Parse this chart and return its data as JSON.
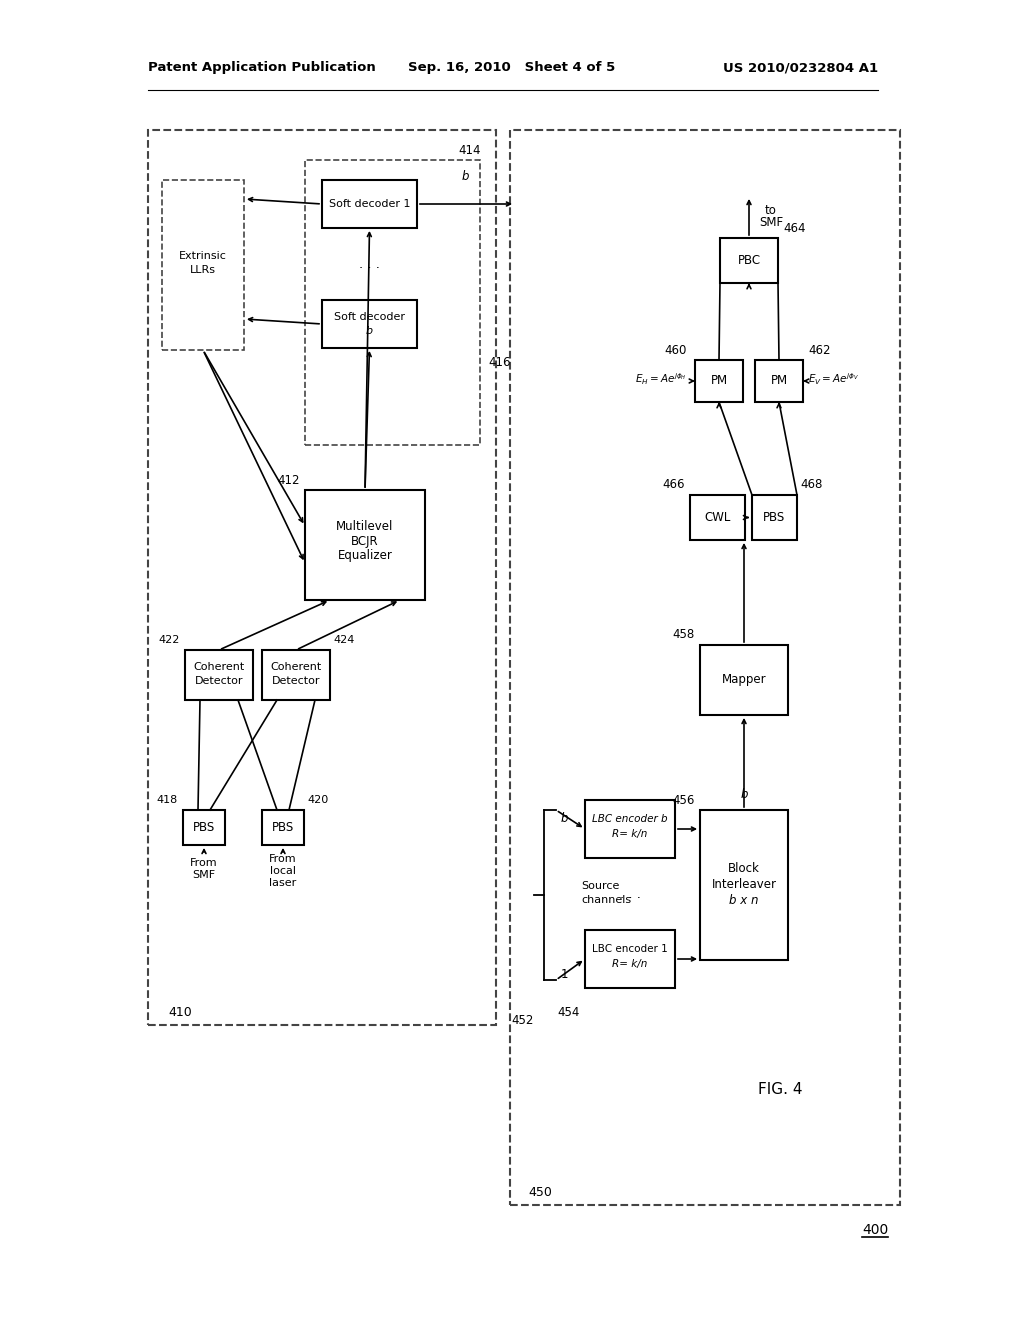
{
  "bg_color": "#ffffff",
  "header_left": "Patent Application Publication",
  "header_center": "Sep. 16, 2010   Sheet 4 of 5",
  "header_right": "US 2010/0232804 A1"
}
